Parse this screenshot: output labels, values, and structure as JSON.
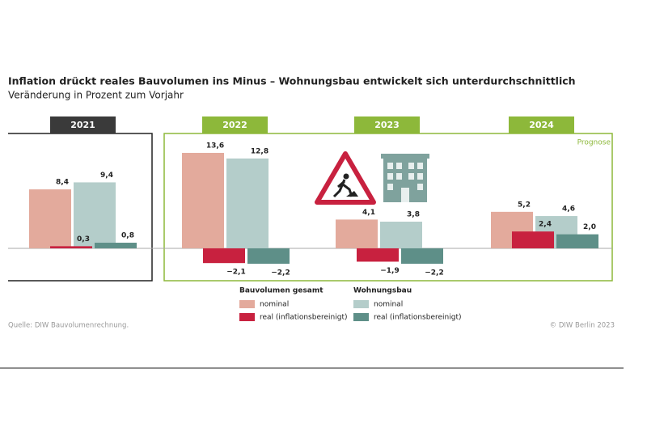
{
  "chart_data": {
    "type": "bar",
    "title": "Inflation drückt reales Bauvolumen ins Minus – Wohnungsbau entwickelt sich unterdurchschnittlich",
    "subtitle": "Veränderung in Prozent zum Vorjahr",
    "categories": [
      "2021",
      "2022",
      "2023",
      "2024"
    ],
    "forecast_label": "Prognose",
    "legend_groups": [
      "Bauvolumen gesamt",
      "Wohnungsbau"
    ],
    "series": [
      {
        "name": "nominal",
        "color": "#e3aa9c",
        "values": [
          8.4,
          13.6,
          4.1,
          5.2
        ],
        "value_labels": [
          "8,4",
          "13,6",
          "4,1",
          "5,2"
        ]
      },
      {
        "name": "real (inflationsbereinigt)",
        "color": "#c8213f",
        "values": [
          0.3,
          -2.1,
          -1.9,
          2.4
        ],
        "value_labels": [
          "0,3",
          "−2,1",
          "−1,9",
          "2,4"
        ]
      },
      {
        "name": "nominal",
        "color": "#b4cdca",
        "values": [
          9.4,
          12.8,
          3.8,
          4.6
        ],
        "value_labels": [
          "9,4",
          "12,8",
          "3,8",
          "4,6"
        ]
      },
      {
        "name": "real (inflationsbereinigt)",
        "color": "#5e8f88",
        "values": [
          0.8,
          -2.2,
          -2.2,
          2.0
        ],
        "value_labels": [
          "0,8",
          "−2,2",
          "−2,2",
          "2,0"
        ]
      }
    ],
    "ylim": [
      -3,
      14
    ],
    "source": "Quelle: DIW Bauvolumenrechnung.",
    "copyright": "© DIW Berlin 2023"
  }
}
